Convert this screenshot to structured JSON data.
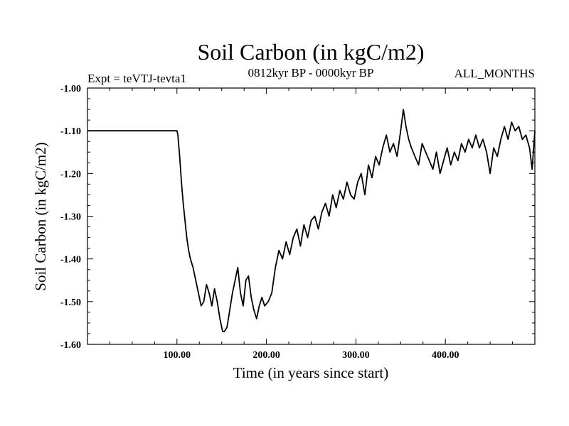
{
  "chart_data": {
    "type": "line",
    "title": "Soil Carbon (in kgC/m2)",
    "subtitle_left": "Expt = teVTJ-tevta1",
    "subtitle_center": "0812kyr BP - 0000kyr BP",
    "subtitle_right": "ALL_MONTHS",
    "xlabel": "Time (in years since start)",
    "ylabel": "Soil Carbon (in kgC/m2)",
    "xlim": [
      0,
      500
    ],
    "ylim": [
      -1.6,
      -1.0
    ],
    "x_ticks": [
      100,
      200,
      300,
      400
    ],
    "x_tick_labels": [
      "100.00",
      "200.00",
      "300.00",
      "400.00"
    ],
    "y_ticks": [
      -1.6,
      -1.5,
      -1.4,
      -1.3,
      -1.2,
      -1.1,
      -1.0
    ],
    "y_tick_labels": [
      "-1.60",
      "-1.50",
      "-1.40",
      "-1.30",
      "-1.20",
      "-1.10",
      "-1.00"
    ],
    "grid": false,
    "series": [
      {
        "name": "Soil Carbon",
        "color": "#000000",
        "x": [
          0,
          100,
          101,
          103,
          105,
          107,
          109,
          111,
          113,
          115,
          118,
          121,
          124,
          127,
          130,
          133,
          136,
          139,
          142,
          145,
          148,
          151,
          153,
          156,
          159,
          162,
          165,
          168,
          171,
          174,
          177,
          180,
          183,
          186,
          189,
          192,
          195,
          198,
          202,
          206,
          210,
          214,
          218,
          222,
          226,
          230,
          234,
          238,
          242,
          246,
          250,
          254,
          258,
          262,
          266,
          270,
          274,
          278,
          282,
          286,
          290,
          294,
          298,
          302,
          306,
          310,
          314,
          318,
          322,
          326,
          330,
          334,
          338,
          342,
          346,
          350,
          353,
          356,
          359,
          362,
          366,
          370,
          374,
          378,
          382,
          386,
          390,
          394,
          398,
          402,
          406,
          410,
          414,
          418,
          422,
          426,
          430,
          434,
          438,
          442,
          446,
          450,
          454,
          458,
          462,
          466,
          470,
          474,
          478,
          482,
          486,
          490,
          494,
          497,
          500
        ],
        "values": [
          -1.1,
          -1.1,
          -1.11,
          -1.16,
          -1.22,
          -1.27,
          -1.31,
          -1.35,
          -1.38,
          -1.4,
          -1.42,
          -1.45,
          -1.48,
          -1.51,
          -1.5,
          -1.46,
          -1.48,
          -1.51,
          -1.47,
          -1.5,
          -1.54,
          -1.57,
          -1.57,
          -1.56,
          -1.52,
          -1.48,
          -1.45,
          -1.42,
          -1.48,
          -1.51,
          -1.45,
          -1.44,
          -1.49,
          -1.52,
          -1.54,
          -1.51,
          -1.49,
          -1.51,
          -1.5,
          -1.48,
          -1.42,
          -1.38,
          -1.4,
          -1.36,
          -1.39,
          -1.35,
          -1.33,
          -1.37,
          -1.32,
          -1.35,
          -1.31,
          -1.3,
          -1.33,
          -1.29,
          -1.27,
          -1.3,
          -1.25,
          -1.28,
          -1.24,
          -1.26,
          -1.22,
          -1.25,
          -1.26,
          -1.22,
          -1.2,
          -1.25,
          -1.18,
          -1.21,
          -1.16,
          -1.18,
          -1.14,
          -1.11,
          -1.15,
          -1.13,
          -1.16,
          -1.1,
          -1.05,
          -1.09,
          -1.12,
          -1.14,
          -1.16,
          -1.18,
          -1.13,
          -1.15,
          -1.17,
          -1.19,
          -1.15,
          -1.2,
          -1.17,
          -1.14,
          -1.18,
          -1.15,
          -1.17,
          -1.13,
          -1.15,
          -1.12,
          -1.14,
          -1.11,
          -1.14,
          -1.12,
          -1.15,
          -1.2,
          -1.14,
          -1.16,
          -1.12,
          -1.09,
          -1.12,
          -1.08,
          -1.1,
          -1.09,
          -1.12,
          -1.11,
          -1.14,
          -1.19,
          -1.1
        ]
      }
    ]
  }
}
